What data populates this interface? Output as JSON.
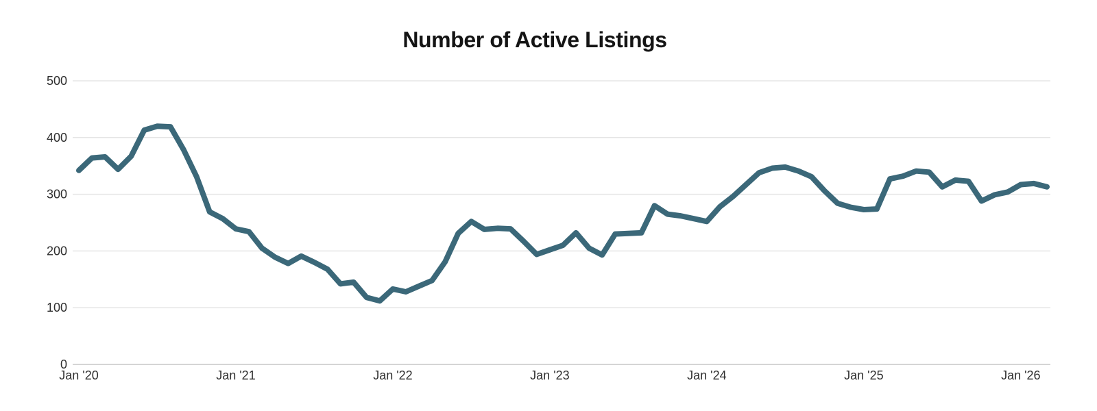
{
  "page": {
    "background": "#ffffff"
  },
  "chart_data": {
    "type": "line",
    "title": "Number of Active Listings",
    "title_color": "#141414",
    "legend": "none",
    "grid": "horizontal",
    "ylim": [
      0,
      500
    ],
    "y_ticks": [
      0,
      100,
      200,
      300,
      400,
      500
    ],
    "x_tick_labels": [
      "Jan '20",
      "Jan '21",
      "Jan '22",
      "Jan '23",
      "Jan '24",
      "Jan '25",
      "Jan '26"
    ],
    "gridline_color": "#e5e5e5",
    "axis_line_color": "#c7c7c7",
    "axis_text_color": "#2f2f2f",
    "x": [
      "2020-01",
      "2020-02",
      "2020-03",
      "2020-04",
      "2020-05",
      "2020-06",
      "2020-07",
      "2020-08",
      "2020-09",
      "2020-10",
      "2020-11",
      "2020-12",
      "2021-01",
      "2021-02",
      "2021-03",
      "2021-04",
      "2021-05",
      "2021-06",
      "2021-07",
      "2021-08",
      "2021-09",
      "2021-10",
      "2021-11",
      "2021-12",
      "2022-01",
      "2022-02",
      "2022-03",
      "2022-04",
      "2022-05",
      "2022-06",
      "2022-07",
      "2022-08",
      "2022-09",
      "2022-10",
      "2022-11",
      "2022-12",
      "2023-01",
      "2023-02",
      "2023-03",
      "2023-04",
      "2023-05",
      "2023-06",
      "2023-07",
      "2023-08",
      "2023-09",
      "2023-10",
      "2023-11",
      "2023-12",
      "2024-01",
      "2024-02",
      "2024-03",
      "2024-04",
      "2024-05",
      "2024-06",
      "2024-07",
      "2024-08",
      "2024-09",
      "2024-10",
      "2024-11",
      "2024-12",
      "2025-01",
      "2025-02",
      "2025-03",
      "2025-04",
      "2025-05",
      "2025-06",
      "2025-07",
      "2025-08",
      "2025-09",
      "2025-10",
      "2025-11",
      "2025-12",
      "2026-01",
      "2026-02",
      "2026-03"
    ],
    "series": [
      {
        "name": "Active Listings",
        "color": "#3b6879",
        "values": [
          342,
          364,
          366,
          344,
          367,
          413,
          420,
          419,
          379,
          331,
          269,
          257,
          239,
          234,
          205,
          189,
          178,
          191,
          180,
          168,
          142,
          145,
          118,
          112,
          133,
          128,
          138,
          148,
          181,
          231,
          252,
          238,
          240,
          239,
          217,
          194,
          202,
          210,
          232,
          205,
          193,
          230,
          231,
          232,
          280,
          265,
          262,
          257,
          252,
          278,
          296,
          317,
          338,
          346,
          348,
          341,
          331,
          306,
          284,
          277,
          273,
          274,
          327,
          332,
          341,
          339,
          313,
          325,
          323,
          288,
          299,
          304,
          317,
          319,
          313
        ]
      }
    ]
  }
}
